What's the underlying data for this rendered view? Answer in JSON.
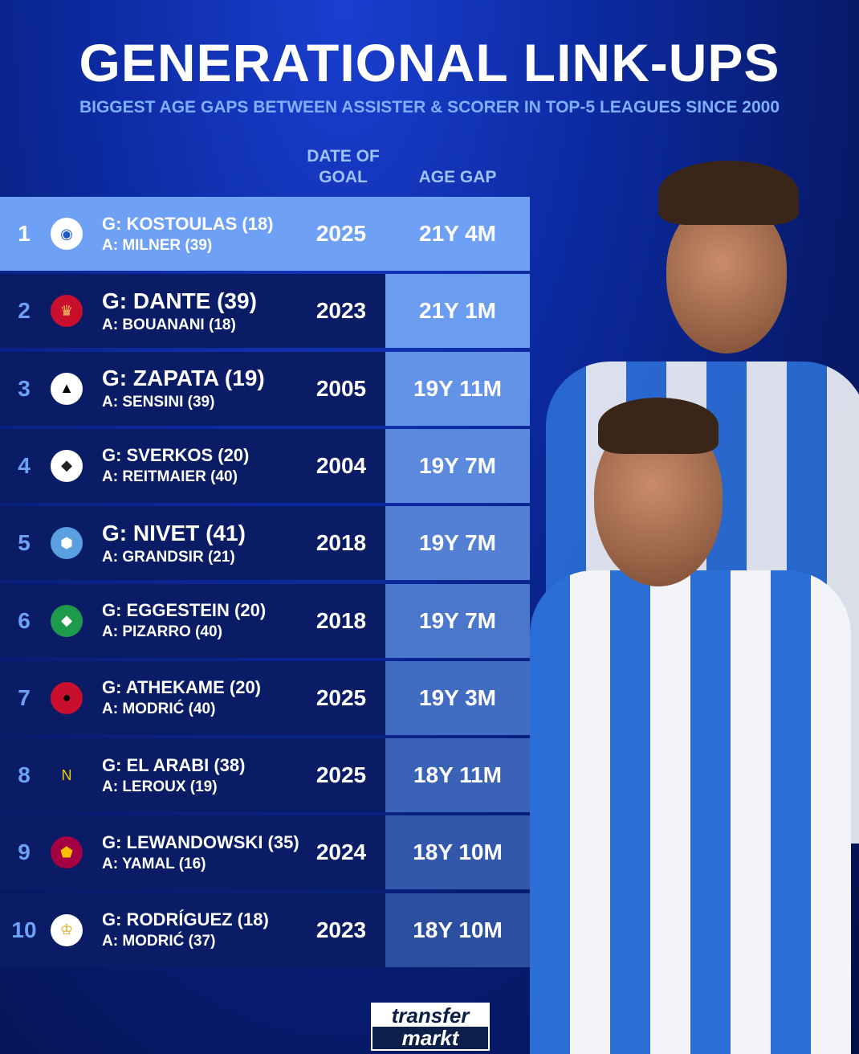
{
  "title": "GENERATIONAL LINK-UPS",
  "subtitle": "BIGGEST AGE GAPS BETWEEN ASSISTER & SCORER IN TOP-5 LEAGUES SINCE 2000",
  "headers": {
    "date": "DATE OF GOAL",
    "gap": "AGE GAP"
  },
  "rows": [
    {
      "rank": "1",
      "crest": "brighton-crest-icon",
      "scorer": "G: KOSTOULAS (18)",
      "assister": "A: MILNER (39)",
      "year": "2025",
      "gap": "21Y 4M",
      "gap_color": "#6ea1f5"
    },
    {
      "rank": "2",
      "crest": "nice-crest-icon",
      "scorer": "G: DANTE (39)",
      "assister": "A: BOUANANI (18)",
      "year": "2023",
      "gap": "21Y 1M",
      "gap_color": "#6a9cf0"
    },
    {
      "rank": "3",
      "crest": "udinese-crest-icon",
      "scorer": "G: ZAPATA (19)",
      "assister": "A: SENSINI (39)",
      "year": "2005",
      "gap": "19Y 11M",
      "gap_color": "#6393e8"
    },
    {
      "rank": "4",
      "crest": "gladbach-crest-icon",
      "scorer": "G: SVERKOS (20)",
      "assister": "A: REITMAIER (40)",
      "year": "2004",
      "gap": "19Y 7M",
      "gap_color": "#5b89de"
    },
    {
      "rank": "5",
      "crest": "troyes-crest-icon",
      "scorer": "G: NIVET (41)",
      "assister": "A: GRANDSIR (21)",
      "year": "2018",
      "gap": "19Y 7M",
      "gap_color": "#5380d5"
    },
    {
      "rank": "6",
      "crest": "werder-crest-icon",
      "scorer": "G: EGGESTEIN (20)",
      "assister": "A: PIZARRO (40)",
      "year": "2018",
      "gap": "19Y 7M",
      "gap_color": "#4a76cb"
    },
    {
      "rank": "7",
      "crest": "milan-crest-icon",
      "scorer": "G: ATHEKAME (20)",
      "assister": "A: MODRIĆ (40)",
      "year": "2025",
      "gap": "19Y 3M",
      "gap_color": "#426cc1"
    },
    {
      "rank": "8",
      "crest": "nantes-crest-icon",
      "scorer": "G: EL ARABI (38)",
      "assister": "A: LEROUX (19)",
      "year": "2025",
      "gap": "18Y 11M",
      "gap_color": "#3a62b6"
    },
    {
      "rank": "9",
      "crest": "barcelona-crest-icon",
      "scorer": "G: LEWANDOWSKI (35)",
      "assister": "A: YAMAL (16)",
      "year": "2024",
      "gap": "18Y 10M",
      "gap_color": "#3358ab"
    },
    {
      "rank": "10",
      "crest": "real-madrid-crest-icon",
      "scorer": "G: RODRÍGUEZ (18)",
      "assister": "A: MODRIĆ (37)",
      "year": "2023",
      "gap": "18Y 10M",
      "gap_color": "#2d4fa0"
    }
  ],
  "logo": {
    "line1": "transfer",
    "line2": "markt"
  }
}
